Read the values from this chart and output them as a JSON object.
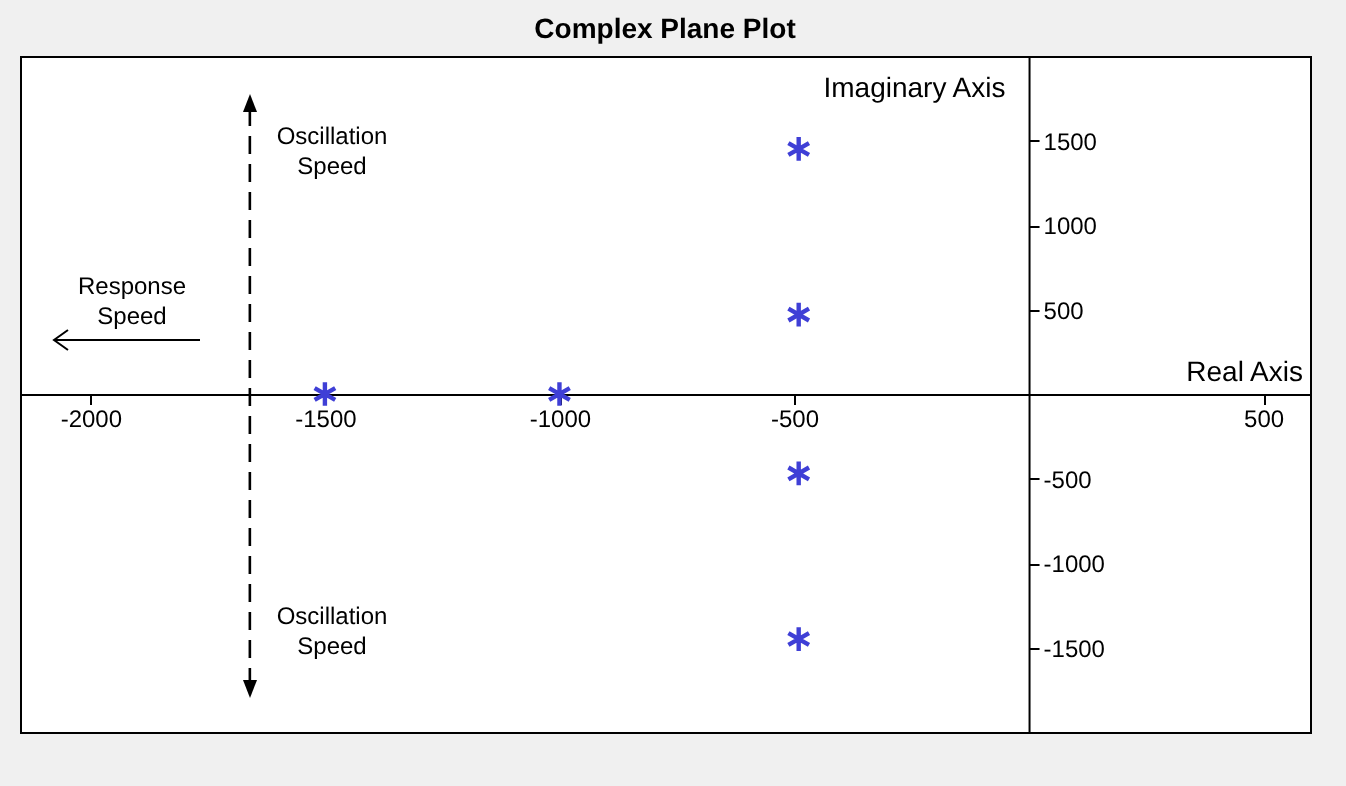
{
  "chart_data": {
    "type": "scatter",
    "title": "Complex Plane Plot",
    "xlabel": "Real Axis",
    "ylabel": "Imaginary Axis",
    "x": [
      -1500,
      -1000,
      -490,
      -490,
      -490,
      -490
    ],
    "series": [
      {
        "color": "#3f3fd6",
        "values": [
          0,
          0,
          1450,
          470,
          -470,
          -1450
        ]
      }
    ],
    "marker": "cross",
    "grid": false,
    "ref_lines": [
      {
        "axis": "x",
        "value": -1660,
        "line_style": "dashed",
        "color": "#000000"
      }
    ],
    "xlim": [
      -2150,
      600
    ],
    "xticks": [
      -2000,
      -1500,
      -1000,
      -500,
      500
    ],
    "ylim": [
      -2000,
      2000
    ],
    "yticks": [
      -1500,
      -1000,
      -500,
      500,
      1000,
      1500
    ],
    "annotations": [
      "Oscillation Speed",
      "Oscillation Speed",
      "Response Speed"
    ]
  }
}
